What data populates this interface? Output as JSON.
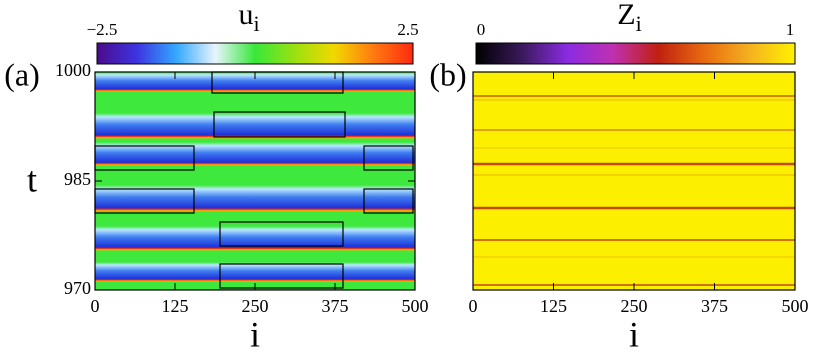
{
  "chart_data": [
    {
      "type": "heatmap",
      "panel_label": "(a)",
      "colorbar_label": "u",
      "colorbar_label_sub": "i",
      "clim": [
        -2.5,
        2.5
      ],
      "cticks": [
        {
          "value": -2.5,
          "label": "−2.5"
        },
        2.5
      ],
      "colormap": [
        "#4b0b8c",
        "#3d33e0",
        "#33a7ff",
        "#e8f4ff",
        "#38e83a",
        "#9be010",
        "#f2d800",
        "#ff7a10",
        "#ff2a10"
      ],
      "xlabel": "i",
      "ylabel": "t",
      "xlim": [
        0,
        500
      ],
      "xticks": [
        0,
        125,
        250,
        375,
        500
      ],
      "ylim": [
        970,
        1000
      ],
      "yticks": [
        970,
        985,
        1000
      ]
    },
    {
      "type": "heatmap",
      "panel_label": "(b)",
      "colorbar_label": "Z",
      "colorbar_label_sub": "i",
      "clim": [
        0,
        1
      ],
      "cticks": [
        0,
        1
      ],
      "colormap": [
        "#000000",
        "#3a1a5a",
        "#8a2be2",
        "#c030b0",
        "#c02010",
        "#e86a10",
        "#f5b020",
        "#fff200"
      ],
      "xlabel": "i",
      "xlim": [
        0,
        500
      ],
      "xticks": [
        0,
        125,
        250,
        375,
        500
      ],
      "ylim": [
        970,
        1000
      ]
    }
  ]
}
